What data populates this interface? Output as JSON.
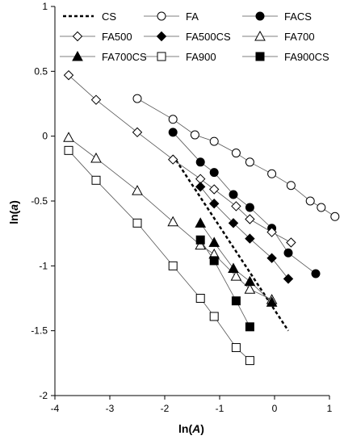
{
  "chart_data": {
    "type": "scatter",
    "xlabel_parts": [
      "ln(",
      "A",
      ")"
    ],
    "ylabel_parts": [
      "ln(",
      "a",
      ")"
    ],
    "xlim": [
      -4,
      1
    ],
    "ylim": [
      -2,
      1
    ],
    "x_ticks": [
      "-4",
      "-3",
      "-2",
      "-1",
      "0",
      "1"
    ],
    "y_ticks": [
      "-2",
      "-1.5",
      "-1",
      "-0.5",
      "0",
      "0.5",
      "1"
    ],
    "legend_placement": "top",
    "series": [
      {
        "name": "CS",
        "marker": "none",
        "line": "dashed",
        "x": [
          -1.85,
          0.25
        ],
        "y": [
          -0.15,
          -1.5
        ]
      },
      {
        "name": "FA",
        "marker": "circle",
        "fill": "open",
        "x": [
          -2.5,
          -1.85,
          -1.45,
          -1.1,
          -0.7,
          -0.45,
          -0.05,
          0.3,
          0.65,
          0.85,
          1.1
        ],
        "y": [
          0.29,
          0.13,
          0.01,
          -0.04,
          -0.13,
          -0.2,
          -0.29,
          -0.38,
          -0.5,
          -0.55,
          -0.62
        ]
      },
      {
        "name": "FACS",
        "marker": "circle",
        "fill": "solid",
        "x": [
          -1.85,
          -1.35,
          -1.1,
          -0.75,
          -0.45,
          -0.05,
          0.25,
          0.75
        ],
        "y": [
          0.03,
          -0.2,
          -0.28,
          -0.45,
          -0.55,
          -0.71,
          -0.9,
          -1.06
        ]
      },
      {
        "name": "FA500",
        "marker": "diamond",
        "fill": "open",
        "x": [
          -3.75,
          -3.25,
          -2.5,
          -1.85,
          -1.35,
          -1.1,
          -0.7,
          -0.45,
          -0.05,
          0.3
        ],
        "y": [
          0.47,
          0.28,
          0.03,
          -0.18,
          -0.33,
          -0.41,
          -0.54,
          -0.64,
          -0.74,
          -0.82
        ]
      },
      {
        "name": "FA500CS",
        "marker": "diamond",
        "fill": "solid",
        "x": [
          -1.35,
          -1.1,
          -0.75,
          -0.45,
          -0.05,
          0.25
        ],
        "y": [
          -0.39,
          -0.52,
          -0.67,
          -0.79,
          -0.94,
          -1.1
        ]
      },
      {
        "name": "FA700",
        "marker": "triangle",
        "fill": "open",
        "x": [
          -3.75,
          -3.25,
          -2.5,
          -1.85,
          -1.35,
          -1.1,
          -0.7,
          -0.45,
          -0.05
        ],
        "y": [
          -0.01,
          -0.17,
          -0.42,
          -0.66,
          -0.84,
          -0.91,
          -1.08,
          -1.18,
          -1.26
        ]
      },
      {
        "name": "FA700CS",
        "marker": "triangle",
        "fill": "solid",
        "x": [
          -1.35,
          -1.1,
          -0.75,
          -0.45,
          -0.05
        ],
        "y": [
          -0.67,
          -0.82,
          -1.02,
          -1.12,
          -1.28
        ]
      },
      {
        "name": "FA900",
        "marker": "square",
        "fill": "open",
        "x": [
          -3.75,
          -3.25,
          -2.5,
          -1.85,
          -1.35,
          -1.1,
          -0.7,
          -0.45
        ],
        "y": [
          -0.11,
          -0.34,
          -0.67,
          -1.0,
          -1.25,
          -1.39,
          -1.63,
          -1.73
        ]
      },
      {
        "name": "FA900CS",
        "marker": "square",
        "fill": "solid",
        "x": [
          -1.35,
          -1.1,
          -0.7,
          -0.45
        ],
        "y": [
          -0.8,
          -0.96,
          -1.27,
          -1.47
        ]
      }
    ]
  }
}
